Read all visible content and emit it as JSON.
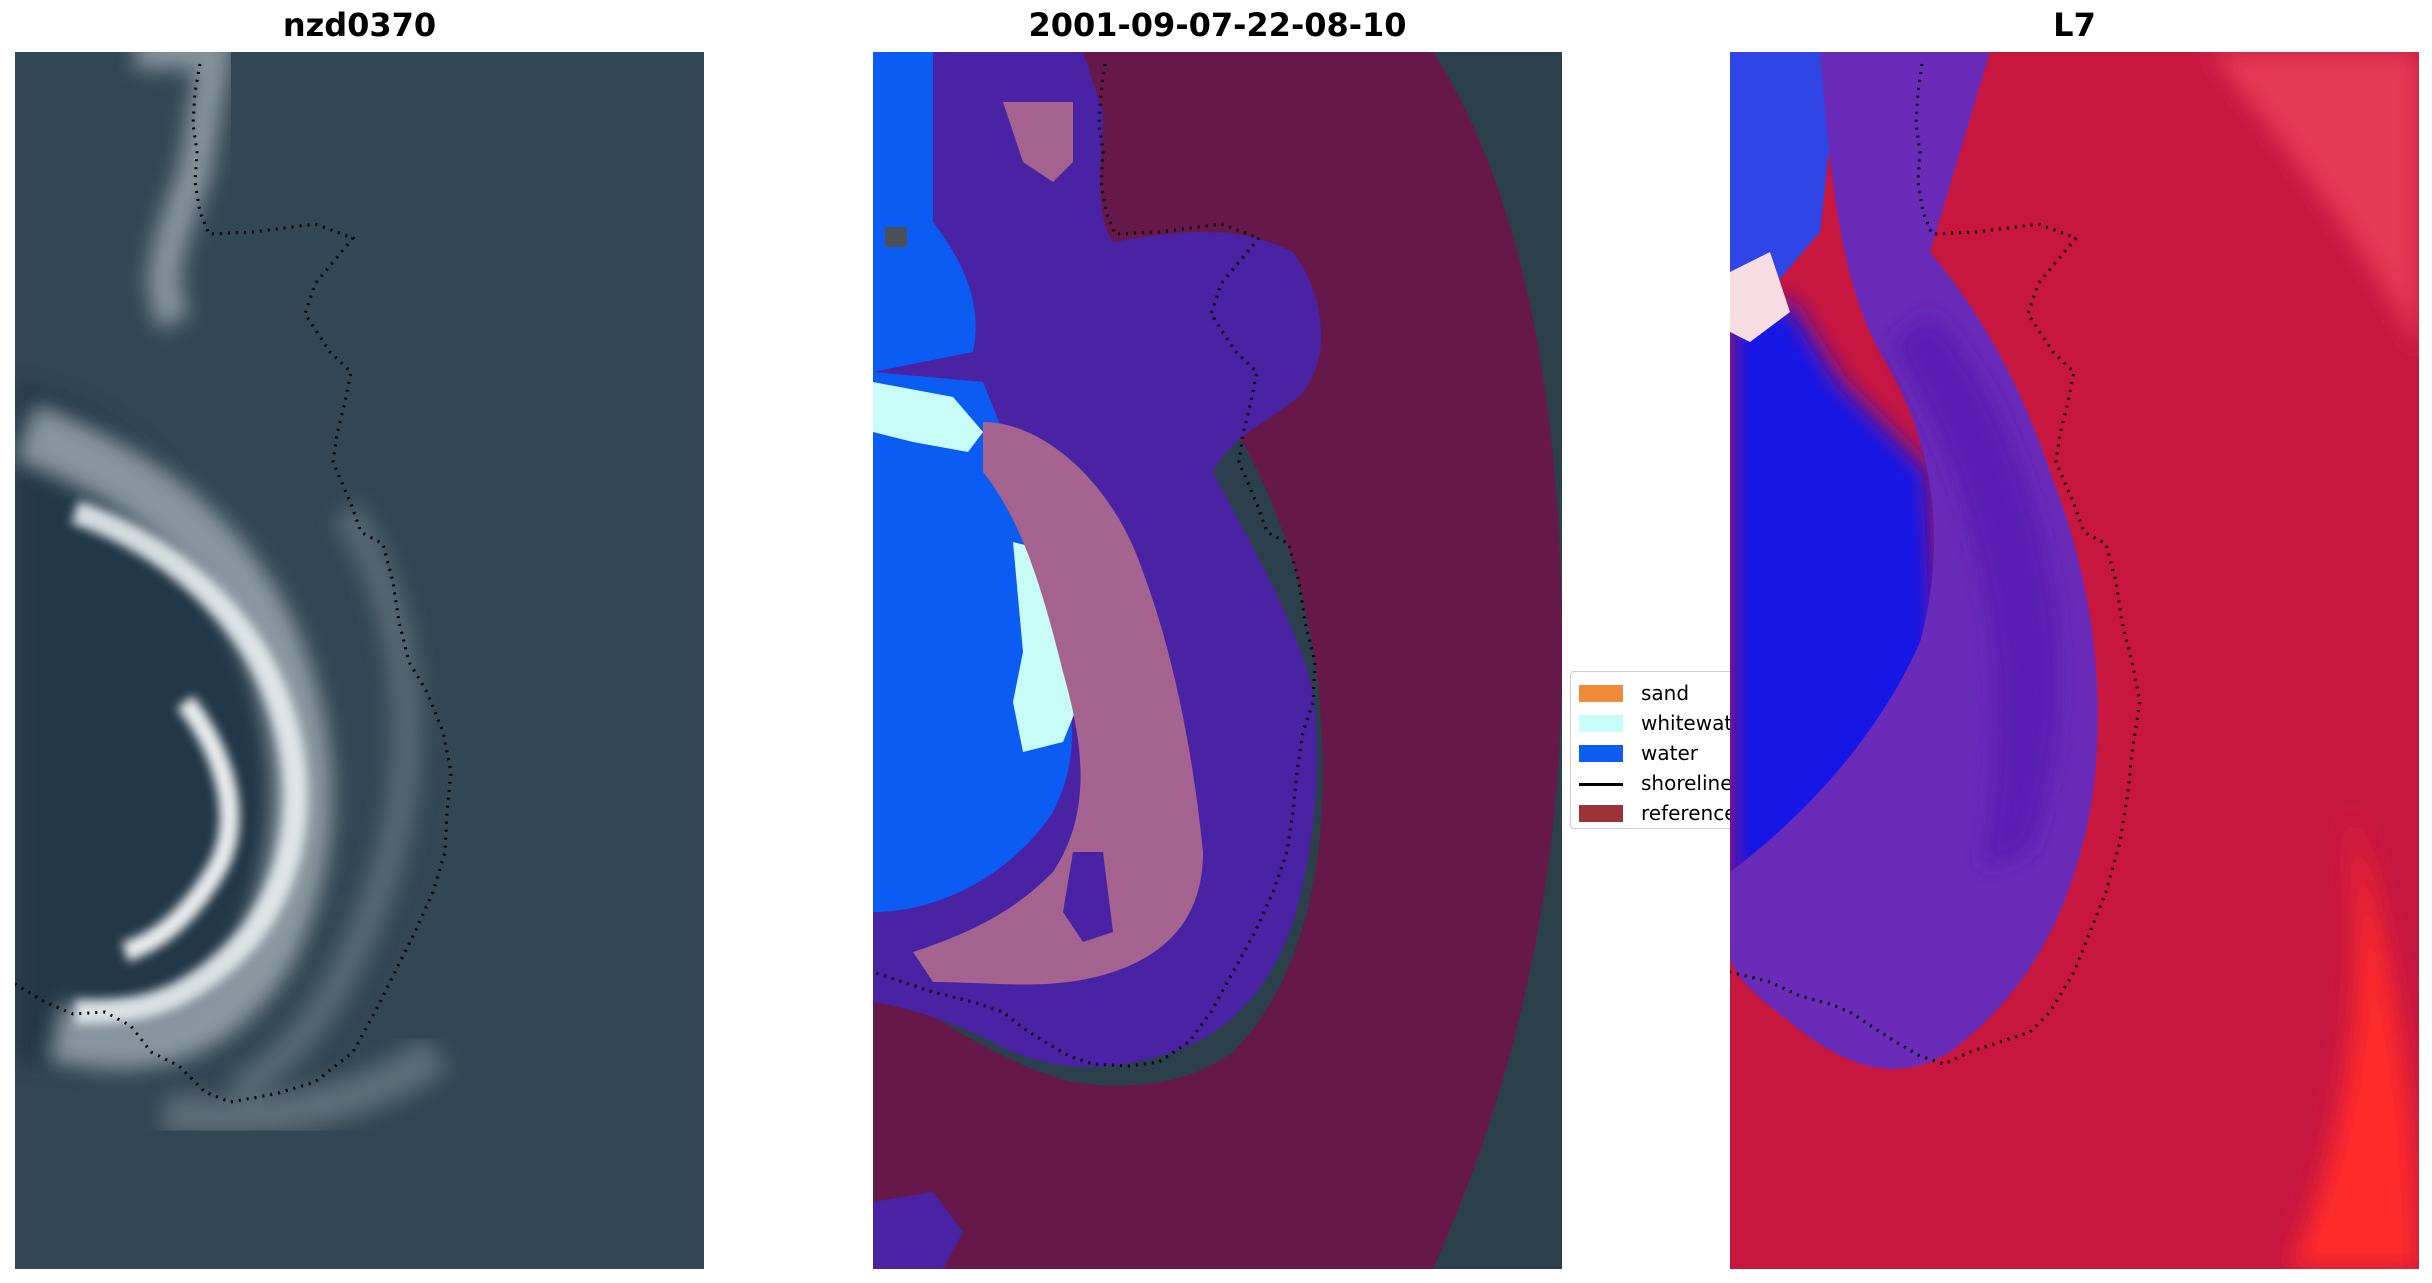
{
  "panels": [
    {
      "title": "nzd0370",
      "image": "RGB satellite image of coastline"
    },
    {
      "title": "2001-09-07-22-08-10",
      "image": "classified image overlay"
    },
    {
      "title": "L7",
      "image": "water index image"
    }
  ],
  "legend": {
    "items": [
      {
        "label": "sand",
        "color": "#f28a3c",
        "kind": "patch"
      },
      {
        "label": "whitewater",
        "color": "#c7fdf6",
        "kind": "patch"
      },
      {
        "label": "water",
        "color": "#0b5cf3",
        "kind": "patch"
      },
      {
        "label": "shoreline",
        "color": "#000000",
        "kind": "line"
      },
      {
        "label": "reference",
        "color": "#9b3338",
        "kind": "patch"
      }
    ]
  }
}
